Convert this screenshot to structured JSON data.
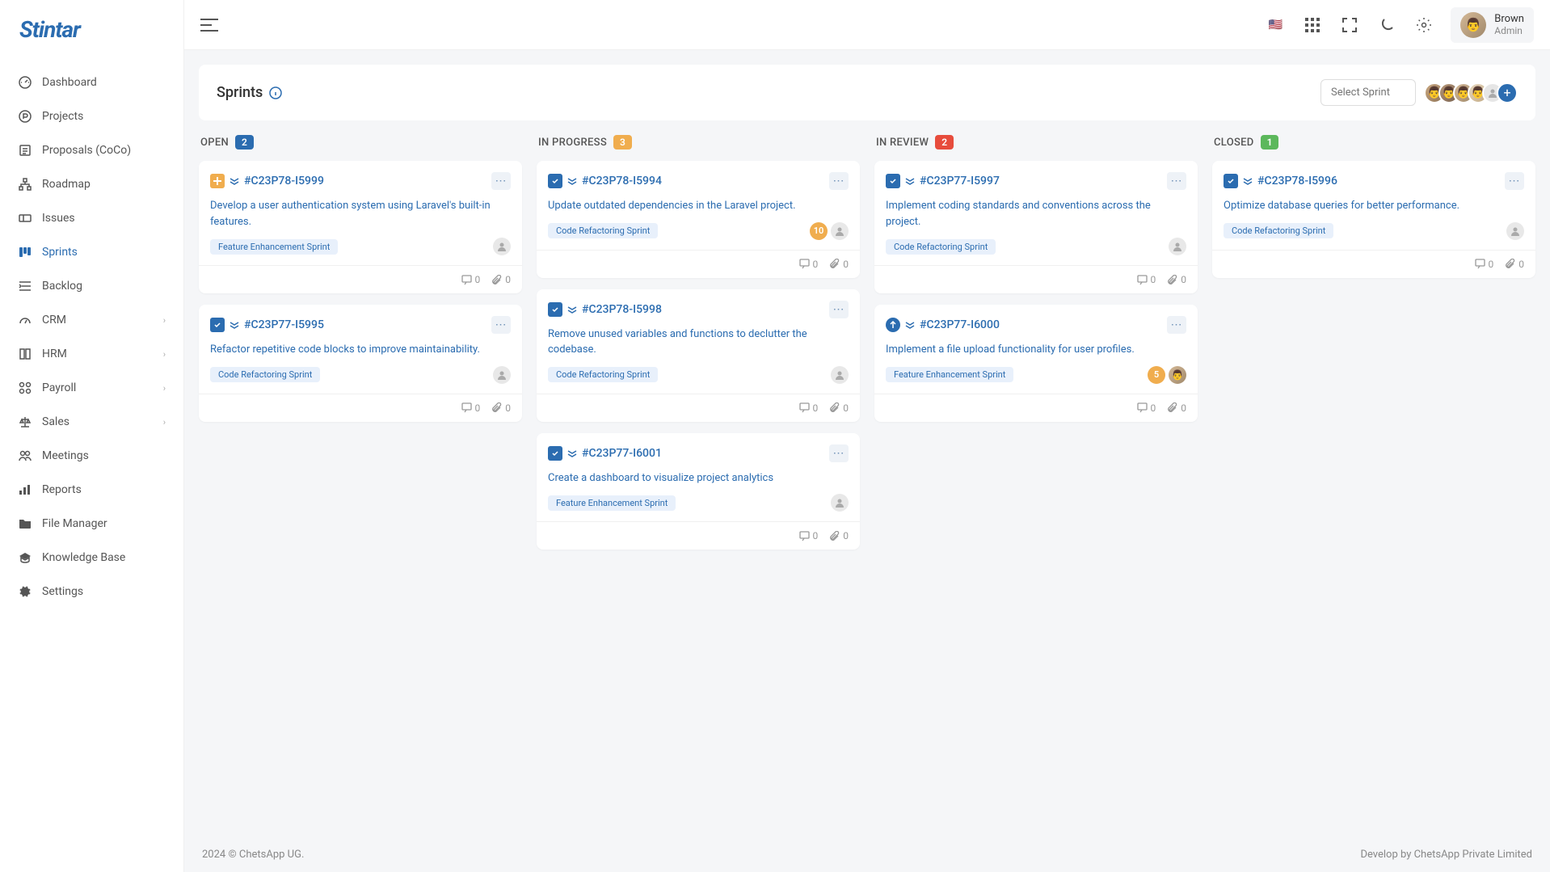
{
  "brand": "Stintar",
  "user": {
    "name": "Brown",
    "role": "Admin"
  },
  "sidebar": {
    "items": [
      {
        "label": "Dashboard",
        "icon": "gauge"
      },
      {
        "label": "Projects",
        "icon": "p-circle"
      },
      {
        "label": "Proposals (CoCo)",
        "icon": "doc-list"
      },
      {
        "label": "Roadmap",
        "icon": "sitemap"
      },
      {
        "label": "Issues",
        "icon": "ticket"
      },
      {
        "label": "Sprints",
        "icon": "board",
        "active": true
      },
      {
        "label": "Backlog",
        "icon": "list-indent"
      },
      {
        "label": "CRM",
        "icon": "tachometer",
        "expandable": true
      },
      {
        "label": "HRM",
        "icon": "book",
        "expandable": true
      },
      {
        "label": "Payroll",
        "icon": "money",
        "expandable": true
      },
      {
        "label": "Sales",
        "icon": "scale",
        "expandable": true
      },
      {
        "label": "Meetings",
        "icon": "users"
      },
      {
        "label": "Reports",
        "icon": "chart"
      },
      {
        "label": "File Manager",
        "icon": "folder"
      },
      {
        "label": "Knowledge Base",
        "icon": "graduation"
      },
      {
        "label": "Settings",
        "icon": "gear"
      }
    ]
  },
  "page": {
    "title": "Sprints",
    "select_placeholder": "Select Sprint"
  },
  "columns": [
    {
      "title": "OPEN",
      "count": "2",
      "badge_class": "blue"
    },
    {
      "title": "IN PROGRESS",
      "count": "3",
      "badge_class": "orange"
    },
    {
      "title": "IN REVIEW",
      "count": "2",
      "badge_class": "red"
    },
    {
      "title": "CLOSED",
      "count": "1",
      "badge_class": "green"
    }
  ],
  "cards": {
    "open": [
      {
        "id": "#C23P78-I5999",
        "title": "Develop a user authentication system using Laravel's built-in features.",
        "tag": "Feature Enhancement Sprint",
        "type": "feature",
        "comments": "0",
        "attachments": "0"
      },
      {
        "id": "#C23P77-I5995",
        "title": "Refactor repetitive code blocks to improve maintainability.",
        "tag": "Code Refactoring Sprint",
        "type": "task",
        "comments": "0",
        "attachments": "0"
      }
    ],
    "progress": [
      {
        "id": "#C23P78-I5994",
        "title": "Update outdated dependencies in the Laravel project.",
        "tag": "Code Refactoring Sprint",
        "type": "task",
        "count": "10",
        "comments": "0",
        "attachments": "0"
      },
      {
        "id": "#C23P78-I5998",
        "title": "Remove unused variables and functions to declutter the codebase.",
        "tag": "Code Refactoring Sprint",
        "type": "task",
        "comments": "0",
        "attachments": "0"
      },
      {
        "id": "#C23P77-I6001",
        "title": "Create a dashboard to visualize project analytics",
        "tag": "Feature Enhancement Sprint",
        "type": "task",
        "comments": "0",
        "attachments": "0"
      }
    ],
    "review": [
      {
        "id": "#C23P77-I5997",
        "title": "Implement coding standards and conventions across the project.",
        "tag": "Code Refactoring Sprint",
        "type": "task",
        "comments": "0",
        "attachments": "0"
      },
      {
        "id": "#C23P77-I6000",
        "title": "Implement a file upload functionality for user profiles.",
        "tag": "Feature Enhancement Sprint",
        "type": "up",
        "count": "5",
        "has_avatar": true,
        "comments": "0",
        "attachments": "0"
      }
    ],
    "closed": [
      {
        "id": "#C23P78-I5996",
        "title": "Optimize database queries for better performance.",
        "tag": "Code Refactoring Sprint",
        "type": "task",
        "comments": "0",
        "attachments": "0"
      }
    ]
  },
  "footer": {
    "left": "2024 © ChetsApp UG.",
    "right": "Develop by ChetsApp Private Limited"
  },
  "colors": {
    "primary": "#2b6cb0",
    "orange": "#f0ad4e",
    "red": "#e74c3c",
    "green": "#5cb85c"
  }
}
